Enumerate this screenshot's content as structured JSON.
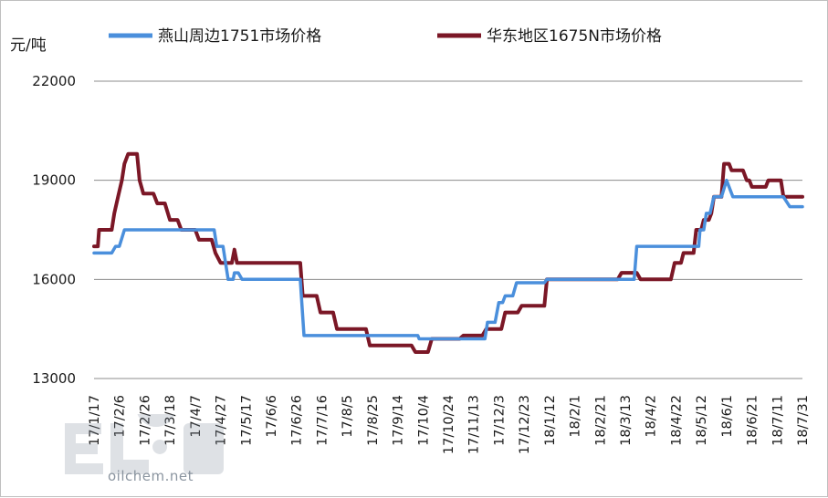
{
  "chart_data": {
    "type": "line",
    "ylabel": "元/吨",
    "ylim": [
      13000,
      22000
    ],
    "yticks": [
      13000,
      16000,
      19000,
      22000
    ],
    "grid": true,
    "legend_position": "top",
    "categories": [
      "17/1/17",
      "17/2/6",
      "17/2/26",
      "17/3/18",
      "17/4/7",
      "17/4/27",
      "17/5/17",
      "17/6/6",
      "17/6/26",
      "17/7/16",
      "17/8/5",
      "17/8/25",
      "17/9/14",
      "17/10/4",
      "17/10/24",
      "17/11/13",
      "17/12/3",
      "17/12/23",
      "18/1/12",
      "18/2/1",
      "18/2/21",
      "18/3/13",
      "18/4/2",
      "18/4/22",
      "18/5/12",
      "18/6/1",
      "18/6/21",
      "18/7/11",
      "18/7/31"
    ],
    "series": [
      {
        "name": "燕山周边1751市场价格",
        "color": "#4a8fdc",
        "points": [
          [
            "2017-01-17",
            16800
          ],
          [
            "2017-01-31",
            16800
          ],
          [
            "2017-02-03",
            17000
          ],
          [
            "2017-02-06",
            17000
          ],
          [
            "2017-02-10",
            17500
          ],
          [
            "2017-04-22",
            17500
          ],
          [
            "2017-04-24",
            17000
          ],
          [
            "2017-04-29",
            17000
          ],
          [
            "2017-05-03",
            16000
          ],
          [
            "2017-05-07",
            16000
          ],
          [
            "2017-05-08",
            16200
          ],
          [
            "2017-05-11",
            16200
          ],
          [
            "2017-05-14",
            16000
          ],
          [
            "2017-06-29",
            16000
          ],
          [
            "2017-07-02",
            14300
          ],
          [
            "2017-09-30",
            14300
          ],
          [
            "2017-10-01",
            14200
          ],
          [
            "2017-11-22",
            14200
          ],
          [
            "2017-11-24",
            14700
          ],
          [
            "2017-11-30",
            14700
          ],
          [
            "2017-12-03",
            15300
          ],
          [
            "2017-12-06",
            15300
          ],
          [
            "2017-12-08",
            15500
          ],
          [
            "2017-12-14",
            15500
          ],
          [
            "2017-12-17",
            15900
          ],
          [
            "2018-01-08",
            15900
          ],
          [
            "2018-01-10",
            16000
          ],
          [
            "2018-03-20",
            16000
          ],
          [
            "2018-03-22",
            17000
          ],
          [
            "2018-05-10",
            17000
          ],
          [
            "2018-05-11",
            17500
          ],
          [
            "2018-05-14",
            17500
          ],
          [
            "2018-05-16",
            18000
          ],
          [
            "2018-05-19",
            18000
          ],
          [
            "2018-05-22",
            18500
          ],
          [
            "2018-05-28",
            18500
          ],
          [
            "2018-06-01",
            19000
          ],
          [
            "2018-06-06",
            18500
          ],
          [
            "2018-07-16",
            18500
          ],
          [
            "2018-07-21",
            18200
          ],
          [
            "2018-07-31",
            18200
          ]
        ]
      },
      {
        "name": "华东地区1675N市场价格",
        "color": "#7b1726",
        "points": [
          [
            "2017-01-17",
            17000
          ],
          [
            "2017-01-20",
            17000
          ],
          [
            "2017-01-21",
            17500
          ],
          [
            "2017-01-31",
            17500
          ],
          [
            "2017-02-02",
            18000
          ],
          [
            "2017-02-05",
            18500
          ],
          [
            "2017-02-08",
            19000
          ],
          [
            "2017-02-10",
            19500
          ],
          [
            "2017-02-13",
            19800
          ],
          [
            "2017-02-20",
            19800
          ],
          [
            "2017-02-22",
            19000
          ],
          [
            "2017-02-25",
            18600
          ],
          [
            "2017-03-05",
            18600
          ],
          [
            "2017-03-08",
            18300
          ],
          [
            "2017-03-14",
            18300
          ],
          [
            "2017-03-18",
            17800
          ],
          [
            "2017-03-24",
            17800
          ],
          [
            "2017-03-27",
            17500
          ],
          [
            "2017-04-07",
            17500
          ],
          [
            "2017-04-10",
            17200
          ],
          [
            "2017-04-20",
            17200
          ],
          [
            "2017-04-23",
            16800
          ],
          [
            "2017-04-27",
            16500
          ],
          [
            "2017-05-06",
            16500
          ],
          [
            "2017-05-08",
            16900
          ],
          [
            "2017-05-10",
            16500
          ],
          [
            "2017-06-29",
            16500
          ],
          [
            "2017-07-01",
            15500
          ],
          [
            "2017-07-12",
            15500
          ],
          [
            "2017-07-15",
            15000
          ],
          [
            "2017-07-25",
            15000
          ],
          [
            "2017-07-28",
            14500
          ],
          [
            "2017-08-20",
            14500
          ],
          [
            "2017-08-23",
            14000
          ],
          [
            "2017-09-25",
            14000
          ],
          [
            "2017-09-28",
            13800
          ],
          [
            "2017-10-08",
            13800
          ],
          [
            "2017-10-11",
            14200
          ],
          [
            "2017-11-02",
            14200
          ],
          [
            "2017-11-05",
            14300
          ],
          [
            "2017-11-20",
            14300
          ],
          [
            "2017-11-23",
            14500
          ],
          [
            "2017-12-05",
            14500
          ],
          [
            "2017-12-08",
            15000
          ],
          [
            "2017-12-18",
            15000
          ],
          [
            "2017-12-21",
            15200
          ],
          [
            "2018-01-08",
            15200
          ],
          [
            "2018-01-10",
            16000
          ],
          [
            "2018-03-07",
            16000
          ],
          [
            "2018-03-10",
            16200
          ],
          [
            "2018-03-22",
            16200
          ],
          [
            "2018-03-25",
            16000
          ],
          [
            "2018-04-18",
            16000
          ],
          [
            "2018-04-21",
            16500
          ],
          [
            "2018-04-26",
            16500
          ],
          [
            "2018-04-28",
            16800
          ],
          [
            "2018-05-06",
            16800
          ],
          [
            "2018-05-08",
            17500
          ],
          [
            "2018-05-12",
            17500
          ],
          [
            "2018-05-14",
            17800
          ],
          [
            "2018-05-18",
            17800
          ],
          [
            "2018-05-20",
            18000
          ],
          [
            "2018-05-22",
            18500
          ],
          [
            "2018-05-28",
            18500
          ],
          [
            "2018-05-30",
            19500
          ],
          [
            "2018-06-03",
            19500
          ],
          [
            "2018-06-05",
            19300
          ],
          [
            "2018-06-14",
            19300
          ],
          [
            "2018-06-17",
            19000
          ],
          [
            "2018-06-19",
            19000
          ],
          [
            "2018-06-21",
            18800
          ],
          [
            "2018-07-02",
            18800
          ],
          [
            "2018-07-04",
            19000
          ],
          [
            "2018-07-14",
            19000
          ],
          [
            "2018-07-16",
            18500
          ],
          [
            "2018-07-31",
            18500
          ]
        ]
      }
    ]
  },
  "watermark": {
    "brand_text": "oilchem.net",
    "logo_icon": "oilchem-logo"
  }
}
